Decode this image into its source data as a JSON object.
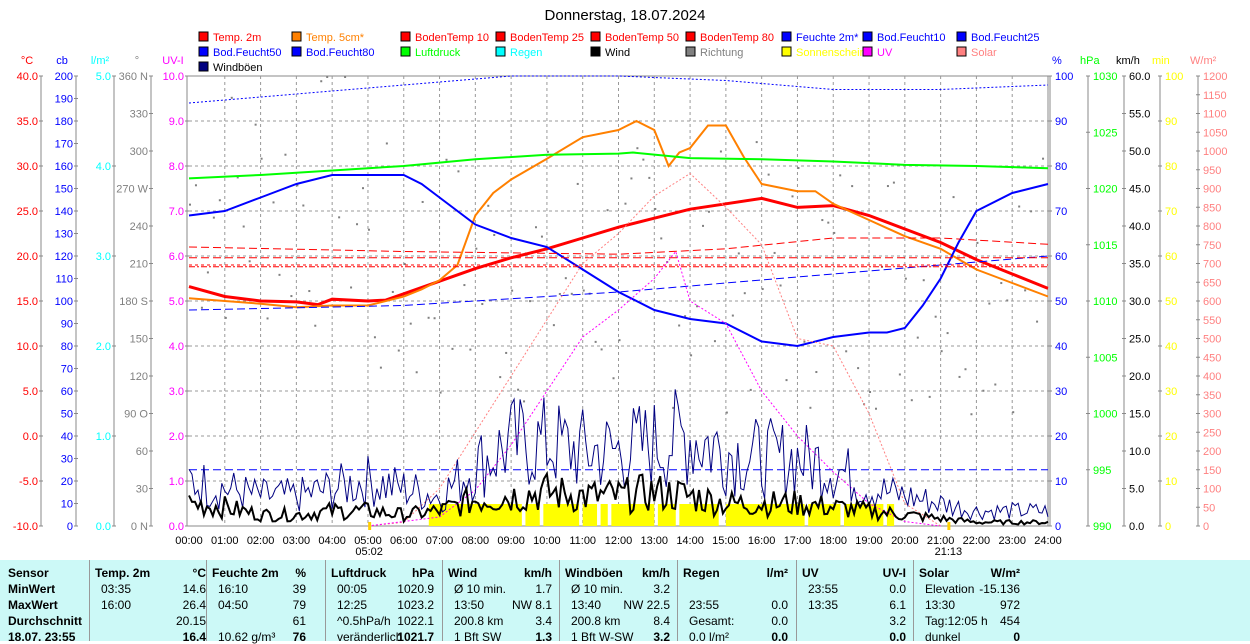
{
  "chart_data": {
    "type": "line",
    "title": "Donnerstag, 18.07.2024",
    "legend": [
      {
        "label": "Temp. 2m",
        "color": "#ff0000"
      },
      {
        "label": "Temp. 5cm*",
        "color": "#ff8000"
      },
      {
        "label": "BodenTemp 10",
        "color": "#ff0000"
      },
      {
        "label": "BodenTemp 25",
        "color": "#ff0000"
      },
      {
        "label": "BodenTemp 50",
        "color": "#ff0000"
      },
      {
        "label": "BodenTemp 80",
        "color": "#ff0000"
      },
      {
        "label": "Feuchte 2m*",
        "color": "#0000ff"
      },
      {
        "label": "Bod.Feucht10",
        "color": "#0000ff"
      },
      {
        "label": "Bod.Feucht25",
        "color": "#0000ff"
      },
      {
        "label": "Bod.Feucht50",
        "color": "#0000ff"
      },
      {
        "label": "Bod.Feucht80",
        "color": "#0000ff"
      },
      {
        "label": "Luftdruck",
        "color": "#00ff00"
      },
      {
        "label": "Regen",
        "color": "#00ffff"
      },
      {
        "label": "Wind",
        "color": "#000000"
      },
      {
        "label": "Richtung",
        "color": "#808080"
      },
      {
        "label": "Sonnenschein",
        "color": "#ffff00"
      },
      {
        "label": "UV",
        "color": "#ff00ff"
      },
      {
        "label": "Solar",
        "color": "#ff8080"
      },
      {
        "label": "Windböen",
        "color": "#000080"
      }
    ],
    "x_ticks": [
      "00:00",
      "01:00",
      "02:00",
      "03:00",
      "04:00",
      "05:00",
      "06:00",
      "07:00",
      "08:00",
      "09:00",
      "10:00",
      "11:00",
      "12:00",
      "13:00",
      "14:00",
      "15:00",
      "16:00",
      "17:00",
      "18:00",
      "19:00",
      "20:00",
      "21:00",
      "22:00",
      "23:00",
      "24:00"
    ],
    "sunrise": "05:02",
    "sunset": "21:13",
    "left_axes": [
      {
        "unit": "°C",
        "color": "#ff0000",
        "range": [
          -10,
          40
        ],
        "labels": [
          "-10.0",
          "-5.0",
          "0.0",
          "5.0",
          "10.0",
          "15.0",
          "20.0",
          "25.0",
          "30.0",
          "35.0",
          "40.0"
        ]
      },
      {
        "unit": "cb",
        "color": "#0000ff",
        "range": [
          0,
          200
        ],
        "labels": [
          "0",
          "10",
          "20",
          "30",
          "40",
          "50",
          "60",
          "70",
          "80",
          "90",
          "100",
          "110",
          "120",
          "130",
          "140",
          "150",
          "160",
          "170",
          "180",
          "190",
          "200"
        ]
      },
      {
        "unit": "l/m²",
        "color": "#00ffff",
        "range": [
          0,
          5
        ],
        "labels": [
          "0.0",
          "1.0",
          "2.0",
          "3.0",
          "4.0",
          "5.0"
        ]
      },
      {
        "unit": "°",
        "color": "#808080",
        "range": [
          0,
          360
        ],
        "labels": [
          "0 N",
          "30",
          "60",
          "90 O",
          "120",
          "150",
          "180 S",
          "210",
          "240",
          "270 W",
          "300",
          "330",
          "360 N"
        ]
      },
      {
        "unit": "UV-I",
        "color": "#ff00ff",
        "range": [
          0,
          10
        ],
        "labels": [
          "0.0",
          "1.0",
          "2.0",
          "3.0",
          "4.0",
          "5.0",
          "6.0",
          "7.0",
          "8.0",
          "9.0",
          "10.0"
        ]
      }
    ],
    "right_axes": [
      {
        "unit": "%",
        "color": "#0000ff",
        "range": [
          0,
          100
        ],
        "labels": [
          "0",
          "10",
          "20",
          "30",
          "40",
          "50",
          "60",
          "70",
          "80",
          "90",
          "100"
        ]
      },
      {
        "unit": "hPa",
        "color": "#00ff00",
        "range": [
          990,
          1030
        ],
        "labels": [
          "990",
          "995",
          "1000",
          "1005",
          "1010",
          "1015",
          "1020",
          "1025",
          "1030"
        ]
      },
      {
        "unit": "km/h",
        "color": "#000000",
        "range": [
          0,
          60
        ],
        "labels": [
          "0.0",
          "5.0",
          "10.0",
          "15.0",
          "20.0",
          "25.0",
          "30.0",
          "35.0",
          "40.0",
          "45.0",
          "50.0",
          "55.0",
          "60.0"
        ]
      },
      {
        "unit": "min",
        "color": "#ffff00",
        "range": [
          0,
          100
        ],
        "labels": [
          "0",
          "10",
          "20",
          "30",
          "40",
          "50",
          "60",
          "70",
          "80",
          "90",
          "100"
        ]
      },
      {
        "unit": "W/m²",
        "color": "#ff8080",
        "range": [
          0,
          1200
        ],
        "labels": [
          "0",
          "50",
          "100",
          "150",
          "200",
          "250",
          "300",
          "350",
          "400",
          "450",
          "500",
          "550",
          "600",
          "650",
          "700",
          "750",
          "800",
          "850",
          "900",
          "950",
          "1000",
          "1050",
          "1100",
          "1150",
          "1200"
        ]
      }
    ],
    "series": [
      {
        "name": "Temp. 2m",
        "axis": "°C",
        "color": "#ff0000",
        "width": 3,
        "x": [
          0,
          1,
          2,
          3,
          3.6,
          4,
          5,
          5.5,
          6,
          7,
          8,
          9,
          10,
          11,
          12,
          13,
          14,
          15,
          16,
          17,
          18,
          19,
          20,
          21,
          22,
          23,
          24
        ],
        "y": [
          16.6,
          15.5,
          15.0,
          14.9,
          14.6,
          15.2,
          15.0,
          15.1,
          15.8,
          17.2,
          18.6,
          19.8,
          20.8,
          22.0,
          23.2,
          24.2,
          25.2,
          25.8,
          26.4,
          25.4,
          25.6,
          24.5,
          23.0,
          21.5,
          19.6,
          18.0,
          16.4
        ]
      },
      {
        "name": "Temp. 5cm*",
        "axis": "°C",
        "color": "#ff8000",
        "width": 2,
        "x": [
          0,
          1,
          2,
          3,
          4,
          5,
          6,
          6.5,
          7,
          7.5,
          8,
          8.5,
          9,
          10,
          11,
          12,
          12.5,
          13,
          13.4,
          13.7,
          14,
          14.5,
          15,
          15.5,
          16,
          17,
          17.5,
          18,
          19,
          20,
          21,
          22,
          23,
          24
        ],
        "y": [
          15.3,
          15.0,
          14.7,
          14.3,
          14.5,
          14.5,
          15.5,
          16.3,
          17.3,
          19.0,
          24.5,
          27.0,
          28.5,
          30.8,
          33.2,
          34.0,
          35.0,
          34.0,
          30.0,
          31.5,
          32.0,
          34.5,
          34.5,
          31.0,
          28.0,
          27.2,
          27.2,
          25.8,
          24.0,
          22.2,
          20.8,
          18.5,
          17.0,
          15.5
        ]
      },
      {
        "name": "Feuchte 2m*",
        "axis": "%",
        "color": "#0000ff",
        "width": 2,
        "x": [
          0,
          1,
          2,
          3,
          4,
          5,
          6,
          6.5,
          7,
          8,
          9,
          10,
          11,
          12,
          13,
          14,
          15,
          16,
          17,
          18,
          19,
          19.5,
          20,
          20.5,
          21,
          21.5,
          22,
          23,
          24
        ],
        "y": [
          69,
          70,
          73,
          76,
          78,
          78,
          78,
          76,
          73,
          67,
          64,
          62,
          57,
          52,
          48,
          46,
          45,
          41,
          40,
          42,
          43,
          43,
          44,
          49,
          55,
          63,
          70,
          74,
          76
        ]
      },
      {
        "name": "Luftdruck",
        "axis": "hPa",
        "color": "#00ff00",
        "width": 2,
        "x": [
          0,
          2,
          4,
          6,
          8,
          10,
          12,
          12.4,
          14,
          16,
          18,
          20,
          22,
          24
        ],
        "y": [
          1020.9,
          1021.2,
          1021.6,
          1022.0,
          1022.6,
          1023.0,
          1023.1,
          1023.2,
          1022.7,
          1022.6,
          1022.4,
          1022.1,
          1022.0,
          1021.8
        ]
      },
      {
        "name": "Bod.Feucht10",
        "axis": "%",
        "color": "#0000ff",
        "width": 1,
        "dash": "2,2",
        "x": [
          0,
          3,
          6,
          9,
          12,
          15,
          18,
          21,
          24
        ],
        "y": [
          94,
          96,
          98,
          100,
          100,
          99,
          97,
          97,
          98
        ]
      },
      {
        "name": "Bod.Feucht25",
        "axis": "%",
        "color": "#0000ff",
        "width": 1,
        "dash": "8,4",
        "x": [
          0,
          6,
          12,
          18,
          24
        ],
        "y": [
          48,
          49,
          52,
          56,
          60
        ]
      },
      {
        "name": "Bod.Feucht50",
        "axis": "%",
        "color": "#0000ff",
        "width": 1,
        "dash": "8,4",
        "x": [
          0,
          24
        ],
        "y": [
          12.5,
          12.5
        ]
      },
      {
        "name": "BodenTemp 10",
        "axis": "°C",
        "color": "#ff0000",
        "width": 1,
        "dash": "8,4",
        "x": [
          0,
          6,
          12,
          15,
          18,
          21,
          24
        ],
        "y": [
          21.0,
          20.5,
          20.2,
          20.8,
          22.0,
          22.0,
          21.3
        ]
      },
      {
        "name": "BodenTemp 25",
        "axis": "°C",
        "color": "#ff0000",
        "width": 1,
        "dash": "8,4",
        "x": [
          0,
          24
        ],
        "y": [
          19.8,
          19.8
        ]
      },
      {
        "name": "BodenTemp 50",
        "axis": "°C",
        "color": "#ff0000",
        "width": 1,
        "dash": "3,3",
        "x": [
          0,
          24
        ],
        "y": [
          19.0,
          19.0
        ]
      },
      {
        "name": "BodenTemp 80",
        "axis": "°C",
        "color": "#ff0000",
        "width": 1,
        "dash": "6,2,2,2",
        "x": [
          0,
          24
        ],
        "y": [
          18.8,
          18.8
        ]
      },
      {
        "name": "Solar",
        "axis": "W/m²",
        "color": "#ff8080",
        "width": 1,
        "dash": "2,2",
        "x": [
          5,
          6,
          7,
          8,
          9,
          10,
          11,
          12,
          13,
          14,
          15,
          16,
          17,
          18,
          19,
          20,
          21
        ],
        "y": [
          0,
          10,
          100,
          250,
          400,
          550,
          700,
          780,
          880,
          940,
          850,
          750,
          500,
          480,
          300,
          60,
          0
        ]
      },
      {
        "name": "UV",
        "axis": "UV-I",
        "color": "#ff00ff",
        "width": 1,
        "dash": "2,2",
        "x": [
          5,
          7,
          8,
          9,
          10,
          11,
          12,
          13,
          13.6,
          14,
          15,
          16,
          17,
          18,
          19,
          20,
          21
        ],
        "y": [
          0,
          0.2,
          0.8,
          1.8,
          3.0,
          4.2,
          4.8,
          5.5,
          6.1,
          5.0,
          4.5,
          3.0,
          2.0,
          1.2,
          0.5,
          0.1,
          0
        ]
      },
      {
        "name": "Windböen",
        "axis": "km/h",
        "color": "#000080",
        "width": 1,
        "noise": true,
        "x": [
          0,
          1,
          2,
          3,
          4,
          5,
          6,
          7,
          8,
          9,
          10,
          11,
          12,
          13,
          14,
          15,
          16,
          17,
          18,
          19,
          20,
          21,
          22,
          23,
          24
        ],
        "y": [
          6,
          5,
          4,
          4,
          5,
          6,
          5,
          4,
          8,
          11,
          11,
          10,
          10,
          11,
          12,
          10,
          9,
          9,
          8,
          5,
          4,
          3,
          2,
          2,
          2
        ]
      },
      {
        "name": "Wind",
        "axis": "km/h",
        "color": "#000000",
        "width": 2,
        "noise": true,
        "x": [
          0,
          1,
          2,
          3,
          4,
          5,
          6,
          7,
          8,
          9,
          10,
          11,
          12,
          13,
          14,
          15,
          16,
          17,
          18,
          19,
          20,
          21,
          22,
          23,
          24
        ],
        "y": [
          3,
          2.5,
          1.5,
          1.5,
          2,
          2,
          1.5,
          2,
          3.5,
          4,
          4.5,
          4,
          4,
          4.5,
          4,
          3,
          3,
          3,
          2.5,
          2,
          1.5,
          1,
          0.5,
          0.5,
          0.5
        ]
      }
    ],
    "sunshine": [
      [
        6.7,
        9.3
      ],
      [
        9.4,
        9.8
      ],
      [
        9.9,
        10.9
      ],
      [
        11.0,
        11.4
      ],
      [
        11.5,
        11.7
      ],
      [
        11.8,
        13.0
      ],
      [
        13.1,
        13.6
      ],
      [
        13.7,
        14.8
      ],
      [
        15.0,
        17.2
      ],
      [
        17.3,
        18.2
      ],
      [
        18.3,
        19.4
      ],
      [
        19.5,
        19.7
      ]
    ]
  },
  "table": {
    "headers": [
      [
        "Sensor",
        ""
      ],
      [
        "Temp. 2m",
        "°C"
      ],
      [
        "Feuchte 2m",
        "%"
      ],
      [
        "Luftdruck",
        "hPa"
      ],
      [
        "Wind",
        "km/h"
      ],
      [
        "Windböen",
        "km/h"
      ],
      [
        "Regen",
        "l/m²"
      ],
      [
        "UV",
        "UV-I"
      ],
      [
        "Solar",
        "W/m²"
      ]
    ],
    "rows": [
      [
        "MinWert",
        "03:35",
        "14.6",
        "16:10",
        "39",
        "00:05",
        "1020.9",
        "Ø 10 min.",
        "1.7",
        "Ø 10 min.",
        "3.2",
        "",
        "",
        "23:55",
        "0.0",
        "Elevation",
        "-15.136"
      ],
      [
        "MaxWert",
        "16:00",
        "26.4",
        "04:50",
        "79",
        "12:25",
        "1023.2",
        "13:50",
        "NW 8.1",
        "13:40",
        "NW 22.5",
        "23:55",
        "0.0",
        "13:35",
        "6.1",
        "13:30",
        "972"
      ],
      [
        "Durchschnitt",
        "",
        "20.15",
        "",
        "61",
        "^0.5hPa/h",
        "1022.1",
        "200.8 km",
        "3.4",
        "200.8 km",
        "8.4",
        "Gesamt:",
        "0.0",
        "",
        "3.2",
        "Tag:12:05 h",
        "454"
      ],
      [
        "18.07. 23:55",
        "",
        "16.4",
        "10.62 g/m³",
        "76",
        "veränderlich",
        "1021.7",
        "1 Bft SW",
        "1.3",
        "1 Bft W-SW",
        "3.2",
        "0.0 l/m²",
        "0.0",
        "",
        "0.0",
        "dunkel",
        "0"
      ]
    ]
  }
}
